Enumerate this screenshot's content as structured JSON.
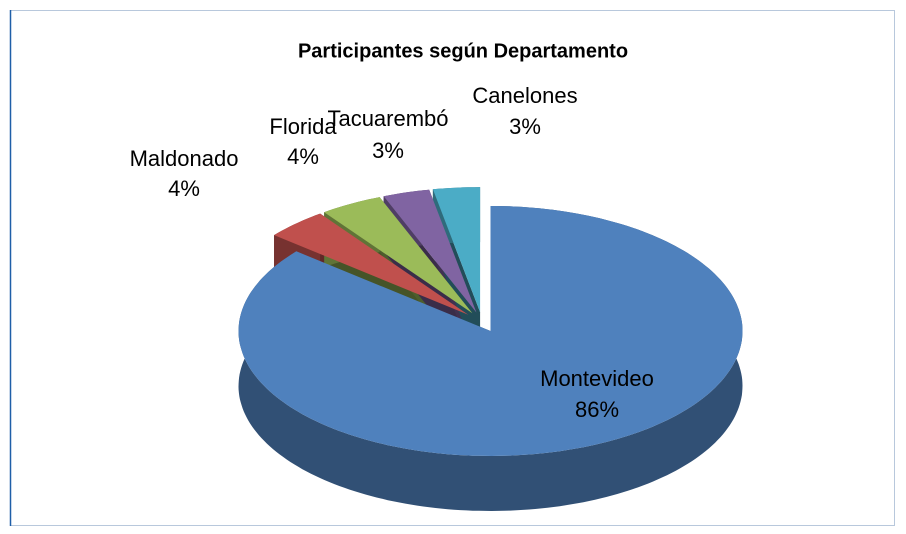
{
  "chart_data": {
    "type": "pie",
    "title": "Participantes según Departamento",
    "categories": [
      "Montevideo",
      "Maldonado",
      "Florida",
      "Tacuarembó",
      "Canelones"
    ],
    "values": [
      86,
      4,
      4,
      3,
      3
    ],
    "value_labels": [
      "86%",
      "4%",
      "4%",
      "3%",
      "3%"
    ],
    "colors": [
      "#4f81bd",
      "#c0504d",
      "#9bbb59",
      "#8064a2",
      "#4bacc6"
    ]
  }
}
